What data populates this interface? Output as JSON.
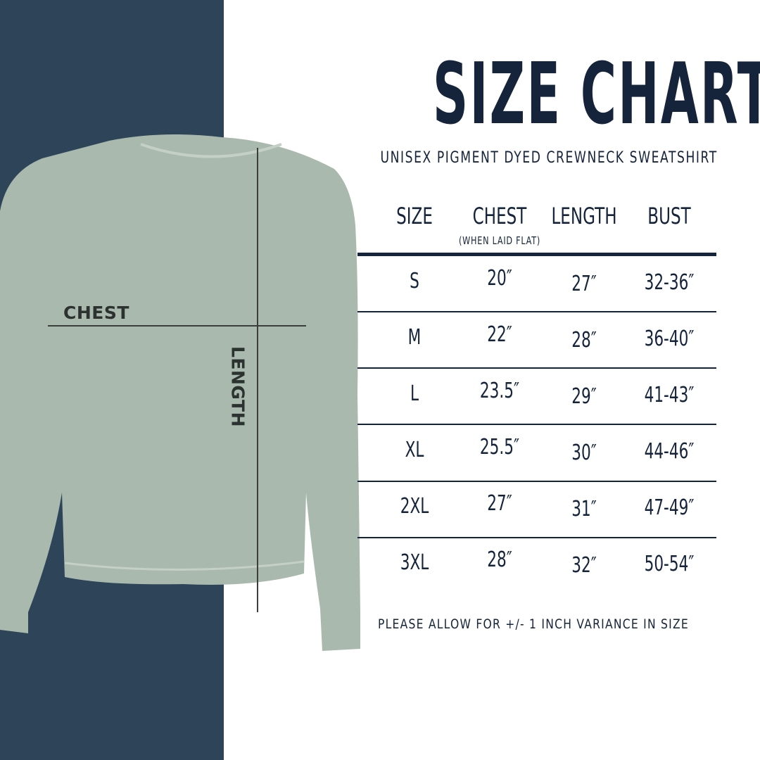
{
  "title": "SIZE CHART",
  "subtitle": "UNISEX PIGMENT DYED CREWNECK SWEATSHIRT",
  "diagram": {
    "chest_label": "CHEST",
    "length_label": "LENGTH",
    "garment_color": "#a9b9ad",
    "panel_color": "#2e4459"
  },
  "table": {
    "headers": [
      "SIZE",
      "CHEST",
      "LENGTH",
      "BUST"
    ],
    "chest_note": "(WHEN LAID FLAT)",
    "rows": [
      [
        "S",
        "20″",
        "27″",
        "32-36″"
      ],
      [
        "M",
        "22″",
        "28″",
        "36-40″"
      ],
      [
        "L",
        "23.5″",
        "29″",
        "41-43″"
      ],
      [
        "XL",
        "25.5″",
        "30″",
        "44-46″"
      ],
      [
        "2XL",
        "27″",
        "31″",
        "47-49″"
      ],
      [
        "3XL",
        "28″",
        "32″",
        "50-54″"
      ]
    ]
  },
  "note": "PLEASE ALLOW FOR +/- 1 INCH VARIANCE IN SIZE",
  "text_color": "#15243a"
}
